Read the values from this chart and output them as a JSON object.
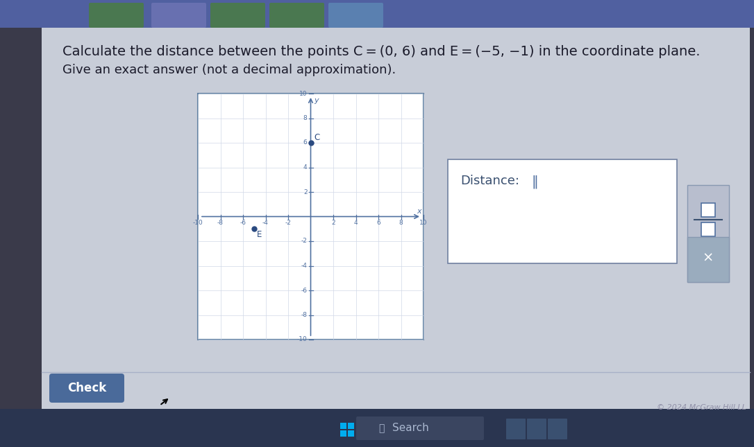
{
  "title_line1": "Calculate the distance between the points C = (0, 6) and E = (−5, −1) in the coordinate plane.",
  "title_line2": "Give an exact answer (not a decimal approximation).",
  "outer_bg": "#3a3a4a",
  "page_bg": "#c8cdd8",
  "graph_bg": "#ffffff",
  "graph_border_color": "#6080a0",
  "axis_color": "#5070a0",
  "point_color": "#2a4a80",
  "label_C": "C",
  "label_E": "E",
  "point_C": [
    0,
    6
  ],
  "point_E": [
    -5,
    -1
  ],
  "distance_box_bg": "#ffffff",
  "distance_box_border": "#7080a0",
  "distance_label": "Distance:",
  "input_field_color": "#6080a0",
  "right_panel_bg": "#b8bece",
  "right_panel_border": "#8898b0",
  "frac_top": "□",
  "frac_bot": "□",
  "x_button_bg": "#9aacbe",
  "check_btn_bg": "#4a6a9a",
  "check_btn_text": "Check",
  "taskbar_bg": "#2a3550",
  "taskbar_search_bg": "#3a4560",
  "copyright": "© 2024 McGraw Hill LL",
  "text_color": "#1a1a2a",
  "nav_bar_bg": "#6070a0",
  "tab_bg": "#8090b8"
}
